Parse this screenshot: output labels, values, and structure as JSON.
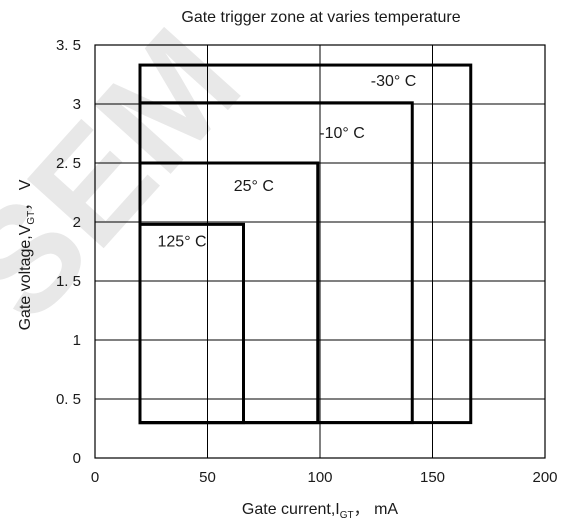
{
  "chart_data": {
    "type": "line",
    "title": "Gate trigger zone at varies temperature",
    "xlabel_main": "Gate current,I",
    "xlabel_sub": "GT",
    "xlabel_unit": "，  mA",
    "ylabel_main": "Gate voltage,V",
    "ylabel_sub": "GT",
    "ylabel_unit": "，  V",
    "xlim": [
      0,
      200
    ],
    "ylim": [
      0,
      3.5
    ],
    "xticks": [
      0,
      50,
      100,
      150,
      200
    ],
    "xtick_labels": [
      "0",
      "50",
      "100",
      "150",
      "200"
    ],
    "yticks": [
      0,
      0.5,
      1,
      1.5,
      2,
      2.5,
      3,
      3.5
    ],
    "ytick_labels": [
      "0",
      "0. 5",
      "1",
      "1. 5",
      "2",
      "2. 5",
      "3",
      "3. 5"
    ],
    "grid": true,
    "watermark": "SEM",
    "series": [
      {
        "name": "-30° C",
        "label": "-30°  C",
        "x_range": [
          20,
          167
        ],
        "y_range": [
          0.3,
          3.33
        ]
      },
      {
        "name": "-10° C",
        "label": "-10°  C",
        "x_range": [
          20,
          141
        ],
        "y_range": [
          0.3,
          3.01
        ]
      },
      {
        "name": "25° C",
        "label": "25°  C",
        "x_range": [
          20,
          99
        ],
        "y_range": [
          0.3,
          2.5
        ]
      },
      {
        "name": "125° C",
        "label": "125°  C",
        "x_range": [
          20,
          66
        ],
        "y_range": [
          0.3,
          1.98
        ]
      }
    ]
  }
}
